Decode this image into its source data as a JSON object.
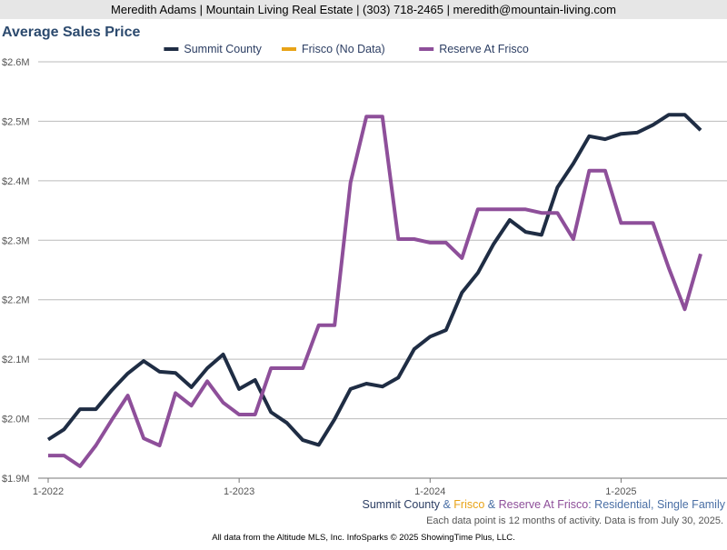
{
  "header": "Meredith Adams | Mountain Living Real Estate | (303) 718-2465 | meredith@mountain-living.com",
  "chart_data": {
    "type": "line",
    "title": "Average Sales Price",
    "categories": [
      "1-2022",
      null,
      null,
      null,
      null,
      null,
      null,
      null,
      null,
      null,
      null,
      null,
      "1-2023",
      null,
      null,
      null,
      null,
      null,
      null,
      null,
      null,
      null,
      null,
      null,
      "1-2024",
      null,
      null,
      null,
      null,
      null,
      null,
      null,
      null,
      null,
      null,
      null,
      "1-2025",
      null,
      null,
      null,
      null,
      null
    ],
    "series": [
      {
        "name": "Summit County",
        "color": "#1f2d44",
        "values": [
          1965000,
          1982000,
          2016000,
          2016000,
          2048000,
          2076000,
          2097000,
          2079000,
          2077000,
          2053000,
          2085000,
          2108000,
          2050000,
          2065000,
          2011000,
          1993000,
          1964000,
          1956000,
          1999000,
          2050000,
          2059000,
          2054000,
          2069000,
          2117000,
          2138000,
          2149000,
          2212000,
          2245000,
          2294000,
          2334000,
          2314000,
          2309000,
          2389000,
          2429000,
          2475000,
          2470000,
          2479000,
          2481000,
          2494000,
          2511000,
          2511000,
          2485000
        ]
      },
      {
        "name": "Frisco (No Data)",
        "color": "#e8a317",
        "values": [
          null,
          null,
          null,
          null,
          null,
          null,
          null,
          null,
          null,
          null,
          null,
          null,
          null,
          null,
          null,
          null,
          null,
          null,
          null,
          null,
          null,
          null,
          null,
          null,
          null,
          null,
          null,
          null,
          null,
          null,
          null,
          null,
          null,
          null,
          null,
          null,
          null,
          null,
          null,
          null,
          null,
          null
        ]
      },
      {
        "name": "Reserve At Frisco",
        "color": "#8e4f9a",
        "values": [
          1938000,
          1938000,
          1920000,
          1955000,
          1998000,
          2039000,
          1967000,
          1955000,
          2043000,
          2022000,
          2063000,
          2027000,
          2007000,
          2007000,
          2085000,
          2085000,
          2085000,
          2157000,
          2157000,
          2397000,
          2508000,
          2508000,
          2302000,
          2302000,
          2296000,
          2296000,
          2270000,
          2352000,
          2352000,
          2352000,
          2352000,
          2346000,
          2346000,
          2302000,
          2417000,
          2417000,
          2329000,
          2329000,
          2329000,
          2253000,
          2184000,
          2277000
        ]
      }
    ],
    "ylim": [
      1900000,
      2600000
    ],
    "yticks": [
      {
        "value": 1900000,
        "label": "$1.9M"
      },
      {
        "value": 2000000,
        "label": "$2.0M"
      },
      {
        "value": 2100000,
        "label": "$2.1M"
      },
      {
        "value": 2200000,
        "label": "$2.2M"
      },
      {
        "value": 2300000,
        "label": "$2.3M"
      },
      {
        "value": 2400000,
        "label": "$2.4M"
      },
      {
        "value": 2500000,
        "label": "$2.5M"
      },
      {
        "value": 2600000,
        "label": "$2.6M"
      }
    ],
    "grid": true,
    "legend": "top",
    "subtitle": [
      {
        "text": "Summit County",
        "color": "#2c3e63"
      },
      {
        "text": " & ",
        "color": "#4a6fa5"
      },
      {
        "text": "Frisco",
        "color": "#e8a317"
      },
      {
        "text": " & ",
        "color": "#4a6fa5"
      },
      {
        "text": "Reserve At Frisco",
        "color": "#8e4f9a"
      },
      {
        "text": ": Residential, Single Family",
        "color": "#4a6fa5"
      }
    ],
    "note": "Each data point is 12 months of activity. Data is from July 30, 2025."
  },
  "footer": "All data from the Altitude MLS, Inc. InfoSparks © 2025 ShowingTime Plus, LLC."
}
